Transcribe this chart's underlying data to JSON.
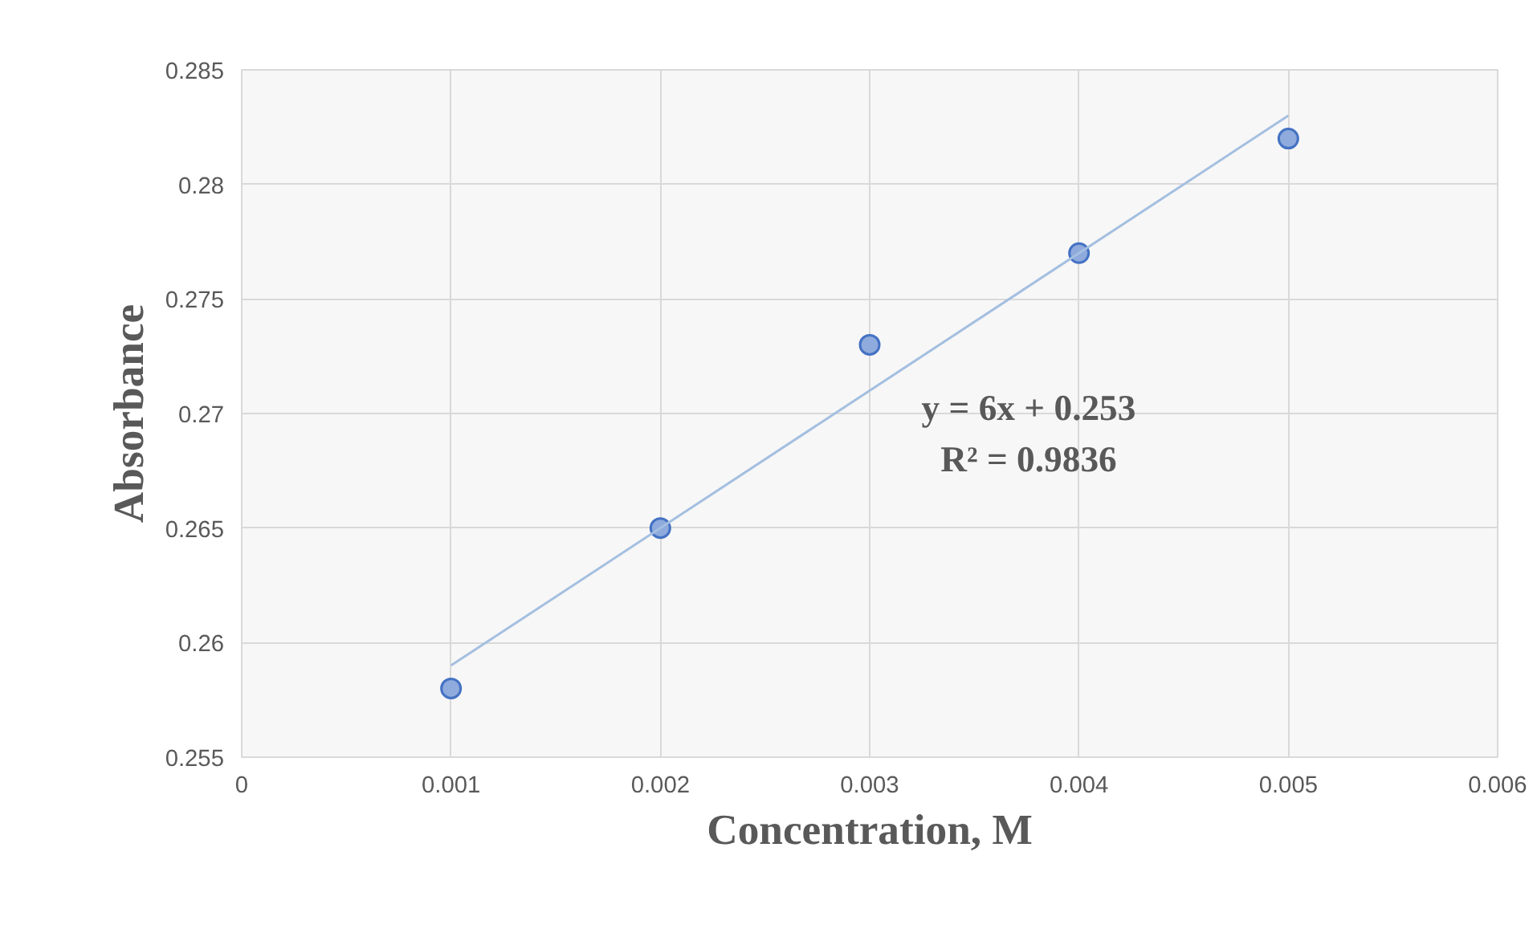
{
  "chart_data": {
    "type": "scatter",
    "xlabel": "Concentration, M",
    "ylabel": "Absorbance",
    "xlim": [
      0,
      0.006
    ],
    "xticks": [
      {
        "value": 0,
        "label": "0"
      },
      {
        "value": 0.001,
        "label": "0.001"
      },
      {
        "value": 0.002,
        "label": "0.002"
      },
      {
        "value": 0.003,
        "label": "0.003"
      },
      {
        "value": 0.004,
        "label": "0.004"
      },
      {
        "value": 0.005,
        "label": "0.005"
      },
      {
        "value": 0.006,
        "label": "0.006"
      }
    ],
    "ylim": [
      0.255,
      0.285
    ],
    "yticks": [
      {
        "value": 0.255,
        "label": "0.255"
      },
      {
        "value": 0.26,
        "label": "0.26"
      },
      {
        "value": 0.265,
        "label": "0.265"
      },
      {
        "value": 0.27,
        "label": "0.27"
      },
      {
        "value": 0.275,
        "label": "0.275"
      },
      {
        "value": 0.28,
        "label": "0.28"
      },
      {
        "value": 0.285,
        "label": "0.285"
      }
    ],
    "grid": true,
    "marker": "circle",
    "series": [
      {
        "color": "#8faadc",
        "x": [
          0.001,
          0.002,
          0.003,
          0.004,
          0.005
        ],
        "values": [
          0.258,
          0.265,
          0.273,
          0.277,
          0.282
        ]
      },
      {
        "type": "line",
        "marker": "none",
        "color": "#a4bfe0",
        "x": [
          0.001,
          0.005
        ],
        "values": [
          0.259,
          0.283
        ]
      }
    ],
    "annotations": [
      "y = 6x + 0.253",
      "R² = 0.9836"
    ]
  }
}
